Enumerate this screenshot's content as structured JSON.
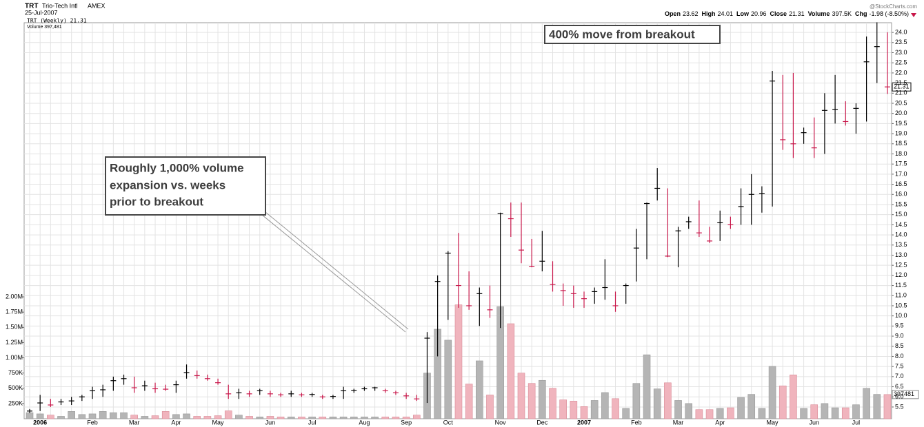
{
  "chart_data": {
    "type": "ohlc",
    "symbol": "TRT",
    "company": "Trio-Tech Intl",
    "exchange": "AMEX",
    "date": "25-Jul-2007",
    "source": "@StockCharts.com",
    "quote": [
      {
        "label": "Open",
        "value": "23.62"
      },
      {
        "label": "High",
        "value": "24.01"
      },
      {
        "label": "Low",
        "value": "20.96"
      },
      {
        "label": "Close",
        "value": "21.31"
      },
      {
        "label": "Volume",
        "value": "397.5K"
      },
      {
        "label": "Chg",
        "value": "-1.98 (-8.50%)"
      }
    ],
    "legend": [
      "TRT (Weekly) 21.31",
      "Volume 397,481"
    ],
    "annotations": [
      {
        "lines": [
          "400% move from breakout"
        ]
      },
      {
        "lines": [
          "Roughly 1,000% volume",
          "expansion vs. weeks",
          "prior to breakout"
        ]
      }
    ],
    "categories": [
      null,
      "2006",
      null,
      null,
      null,
      null,
      "Feb",
      null,
      null,
      null,
      "Mar",
      null,
      null,
      null,
      "Apr",
      null,
      null,
      null,
      "May",
      null,
      null,
      null,
      null,
      "Jun",
      null,
      null,
      null,
      "Jul",
      null,
      null,
      null,
      null,
      "Aug",
      null,
      null,
      null,
      "Sep",
      null,
      null,
      null,
      "Oct",
      null,
      null,
      null,
      null,
      "Nov",
      null,
      null,
      null,
      "Dec",
      null,
      null,
      null,
      "2007",
      null,
      null,
      null,
      null,
      "Feb",
      null,
      null,
      null,
      "Mar",
      null,
      null,
      null,
      "Apr",
      null,
      null,
      null,
      null,
      "May",
      null,
      null,
      null,
      "Jun",
      null,
      null,
      null,
      "Jul",
      null,
      null,
      null
    ],
    "high": [
      5.4,
      6.1,
      5.9,
      5.9,
      6.0,
      6.1,
      6.5,
      6.6,
      7.0,
      7.1,
      7.0,
      6.8,
      6.7,
      6.6,
      6.8,
      7.6,
      7.3,
      7.1,
      6.9,
      6.6,
      6.4,
      6.3,
      6.4,
      6.3,
      6.2,
      6.3,
      6.2,
      6.2,
      6.1,
      6.1,
      6.5,
      6.4,
      6.5,
      6.5,
      6.4,
      6.3,
      6.2,
      6.1,
      9.2,
      12.0,
      13.2,
      14.1,
      12.2,
      11.4,
      11.5,
      15.1,
      15.6,
      15.6,
      13.8,
      14.2,
      12.7,
      11.6,
      11.5,
      11.2,
      11.4,
      12.8,
      11.2,
      11.6,
      14.3,
      15.6,
      17.3,
      16.3,
      14.4,
      14.9,
      15.7,
      14.4,
      15.2,
      14.9,
      16.3,
      17.0,
      16.4,
      22.1,
      21.9,
      22.0,
      19.3,
      19.8,
      21.0,
      21.9,
      20.6,
      20.5,
      23.8,
      24.5,
      24.01
    ],
    "low": [
      5.2,
      5.3,
      5.5,
      5.6,
      5.6,
      5.8,
      5.9,
      6.0,
      6.3,
      6.6,
      6.2,
      6.3,
      6.2,
      6.3,
      6.2,
      6.9,
      6.9,
      6.8,
      6.6,
      5.9,
      5.9,
      6.0,
      6.1,
      6.0,
      6.0,
      6.0,
      6.0,
      6.0,
      5.9,
      5.9,
      5.9,
      6.2,
      6.3,
      6.3,
      6.2,
      6.1,
      5.9,
      5.8,
      5.7,
      8.0,
      9.8,
      10.4,
      10.3,
      9.5,
      9.9,
      9.4,
      13.9,
      12.6,
      12.4,
      12.2,
      11.2,
      10.5,
      10.4,
      10.4,
      10.6,
      10.8,
      10.2,
      10.6,
      11.7,
      12.8,
      15.7,
      12.9,
      12.4,
      14.3,
      13.9,
      13.6,
      13.7,
      14.3,
      14.5,
      14.5,
      15.1,
      15.4,
      18.2,
      17.8,
      18.5,
      17.8,
      18.0,
      19.5,
      19.4,
      19.0,
      19.6,
      21.5,
      20.96
    ],
    "close": [
      5.3,
      5.7,
      5.6,
      5.75,
      5.8,
      6.0,
      6.3,
      6.35,
      6.8,
      6.9,
      6.45,
      6.55,
      6.4,
      6.38,
      6.6,
      7.2,
      7.05,
      6.9,
      6.7,
      6.15,
      6.2,
      6.15,
      6.3,
      6.15,
      6.1,
      6.15,
      6.1,
      6.12,
      6.0,
      6.02,
      6.3,
      6.32,
      6.4,
      6.45,
      6.3,
      6.2,
      6.05,
      5.9,
      8.9,
      11.7,
      13.1,
      11.5,
      10.5,
      11.1,
      10.3,
      15.05,
      14.8,
      13.25,
      12.45,
      12.7,
      11.55,
      11.25,
      11.1,
      10.85,
      11.2,
      11.4,
      10.5,
      11.5,
      13.35,
      15.55,
      16.3,
      12.95,
      14.2,
      14.65,
      14.1,
      13.7,
      14.6,
      14.5,
      15.4,
      16.0,
      16.05,
      21.6,
      18.7,
      18.5,
      19.05,
      18.3,
      20.15,
      20.2,
      19.6,
      20.25,
      22.55,
      23.3,
      21.31
    ],
    "volume": [
      100000,
      80000,
      60000,
      40000,
      120000,
      70000,
      80000,
      120000,
      100000,
      100000,
      60000,
      40000,
      50000,
      120000,
      70000,
      80000,
      40000,
      40000,
      50000,
      130000,
      60000,
      40000,
      30000,
      40000,
      30000,
      30000,
      30000,
      30000,
      30000,
      30000,
      30000,
      30000,
      30000,
      30000,
      30000,
      30000,
      30000,
      60000,
      750000,
      1470000,
      1290000,
      1870000,
      570000,
      950000,
      390000,
      1840000,
      1560000,
      750000,
      580000,
      630000,
      500000,
      310000,
      290000,
      200000,
      300000,
      430000,
      330000,
      170000,
      580000,
      1050000,
      490000,
      590000,
      300000,
      250000,
      150000,
      150000,
      170000,
      180000,
      350000,
      400000,
      170000,
      860000,
      540000,
      720000,
      170000,
      230000,
      250000,
      180000,
      180000,
      230000,
      500000,
      400000,
      397481
    ],
    "up_color": "#000000",
    "down_color": "#c8174a",
    "volume_up_color": "#b5b5b5",
    "volume_down_color": "#f0b4bd",
    "grid": true,
    "ylim": [
      4.92,
      24.48
    ],
    "yticks": [
      5.5,
      {
        "value": 6,
        "label": "6.0"
      },
      6.5,
      {
        "value": 7,
        "label": "7.0"
      },
      7.5,
      {
        "value": 8,
        "label": "8.0"
      },
      8.5,
      {
        "value": 9,
        "label": "9.0"
      },
      9.5,
      {
        "value": 10,
        "label": "10.0"
      },
      10.5,
      {
        "value": 11,
        "label": "11.0"
      },
      11.5,
      {
        "value": 12,
        "label": "12.0"
      },
      12.5,
      {
        "value": 13,
        "label": "13.0"
      },
      13.5,
      {
        "value": 14,
        "label": "14.0"
      },
      14.5,
      {
        "value": 15,
        "label": "15.0"
      },
      15.5,
      {
        "value": 16,
        "label": "16.0"
      },
      16.5,
      {
        "value": 17,
        "label": "17.0"
      },
      17.5,
      {
        "value": 18,
        "label": "18.0"
      },
      18.5,
      {
        "value": 19,
        "label": "19.0"
      },
      19.5,
      {
        "value": 20,
        "label": "20.0"
      },
      20.5,
      {
        "value": 21,
        "label": "21.0"
      },
      21.5,
      {
        "value": 22,
        "label": "22.0"
      },
      22.5,
      {
        "value": 23,
        "label": "23.0"
      },
      23.5,
      {
        "value": 24,
        "label": "24.0"
      }
    ],
    "y2lim": [
      0,
      6500000
    ],
    "y2ticks": [
      {
        "value": 250000,
        "label": "250K"
      },
      {
        "value": 500000,
        "label": "500K"
      },
      {
        "value": 750000,
        "label": "750K"
      },
      {
        "value": 1000000,
        "label": "1.00M"
      },
      {
        "value": 1250000,
        "label": "1.25M"
      },
      {
        "value": 1500000,
        "label": "1.50M"
      },
      {
        "value": 1750000,
        "label": "1.75M"
      },
      {
        "value": 2000000,
        "label": "2.00M"
      }
    ]
  }
}
